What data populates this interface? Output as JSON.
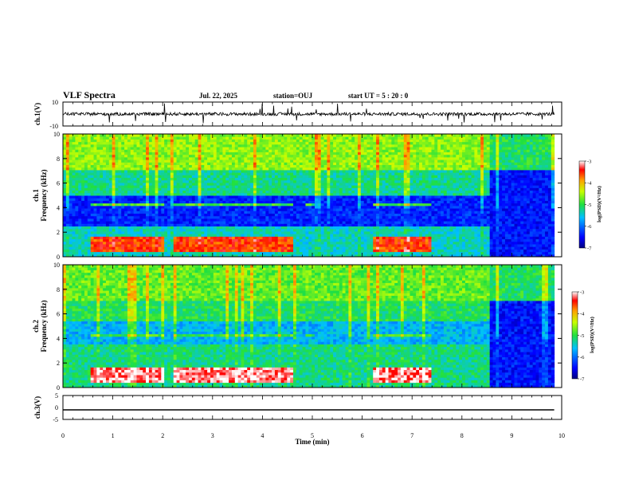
{
  "header": {
    "title": "VLF Spectra",
    "date": "Jul. 22, 2025",
    "station": "station=OUJ",
    "start": "start UT =  5 : 20 : 0"
  },
  "chart_data": [
    {
      "type": "line",
      "panel": "ch1-waveform",
      "ylabel": "ch.1(V)",
      "ylim": [
        -10,
        10
      ],
      "y_ticks": [
        "10",
        "-10"
      ],
      "baseline_value": 0,
      "trace_color": "#000000",
      "note_series": "continuous waveform, shown as noisy trace around 0 V with sparse spikes"
    },
    {
      "type": "heatmap",
      "panel": "ch1-spectrogram",
      "ylabel": "ch.1 Frequency (kHz)",
      "ylim": [
        0,
        10
      ],
      "y_ticks": [
        "0",
        "2",
        "4",
        "6",
        "8",
        "10"
      ],
      "colorbar": {
        "label": "log(PSD)(V²/Hz)",
        "range": [
          -7,
          -3
        ],
        "ticks": [
          "-3",
          "-4",
          "-5",
          "-6",
          "-7"
        ]
      },
      "segment_boundaries_min": [
        0.5,
        2.0,
        2.2,
        4.6,
        4.85,
        5.0,
        6.2,
        7.35,
        8.55
      ],
      "quiet_after_min": 8.55
    },
    {
      "type": "heatmap",
      "panel": "ch2-spectrogram",
      "ylabel": "ch.2 Frequency (kHz)",
      "ylim": [
        0,
        10
      ],
      "y_ticks": [
        "0",
        "2",
        "4",
        "6",
        "8",
        "10"
      ],
      "colorbar": {
        "label": "log(PSD)(V²/Hz)",
        "range": [
          -7,
          -3
        ],
        "ticks": [
          "-3",
          "-4",
          "-5",
          "-6",
          "-7"
        ]
      },
      "segment_boundaries_min": [
        0.5,
        2.0,
        2.2,
        4.6,
        4.85,
        5.0,
        6.2,
        7.35,
        8.55
      ],
      "quiet_after_min": 8.55
    },
    {
      "type": "line",
      "panel": "ch3-waveform",
      "ylabel": "ch.3(V)",
      "ylim": [
        -5,
        5
      ],
      "y_ticks": [
        "5",
        "0",
        "-5"
      ],
      "x": [
        0,
        9.85
      ],
      "y": [
        -1,
        -1
      ],
      "xlabel": "Time (min)",
      "xlim": [
        0,
        10
      ],
      "x_ticks": [
        "0",
        "1",
        "2",
        "3",
        "4",
        "5",
        "6",
        "7",
        "8",
        "9",
        "10"
      ]
    }
  ]
}
